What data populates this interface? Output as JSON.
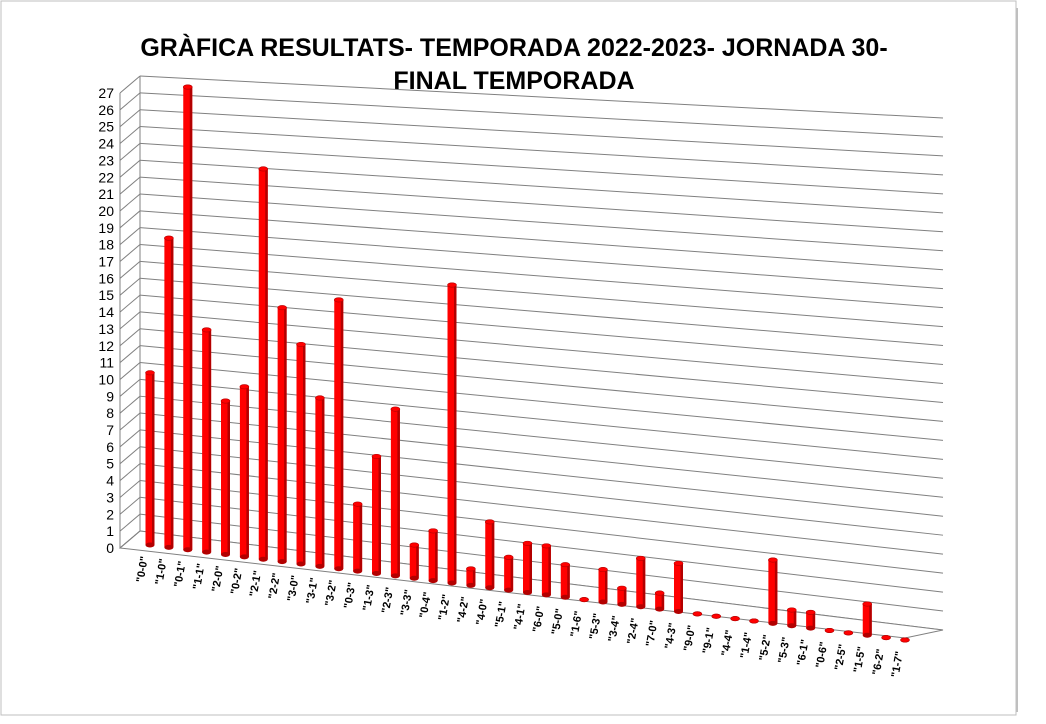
{
  "chart_data": {
    "type": "bar",
    "title_lines": [
      "GRÀFICA RESULTATS- TEMPORADA 2022-2023- JORNADA 30-",
      "FINAL TEMPORADA"
    ],
    "categories": [
      "\"0-0\"",
      "\"1-0\"",
      "\"0-1\"",
      "\"1-1\"",
      "\"2-0\"",
      "\"0-2\"",
      "\"2-1\"",
      "\"2-2\"",
      "\"3-0\"",
      "\"3-1\"",
      "\"3-2\"",
      "\"0-3\"",
      "\"1-3\"",
      "\"2-3\"",
      "\"3-3\"",
      "\"0-4\"",
      "\"1-2\"",
      "\"4-2\"",
      "\"4-0\"",
      "\"5-1\"",
      "\"4-1\"",
      "\"6-0\"",
      "\"5-0\"",
      "\"1-6\"",
      "\"5-3\"",
      "\"3-4\"",
      "\"2-4\"",
      "\"7-0\"",
      "\"4-3\"",
      "\"9-0\"",
      "\"9-1\"",
      "\"4-4\"",
      "\"1-4\"",
      "\"5-2\"",
      "\"5-3\"",
      "\"6-1\"",
      "\"0-6\"",
      "\"2-5\"",
      "\"1-5\"",
      "\"6-2\"",
      "\"1-7\""
    ],
    "values": [
      10,
      18,
      27,
      13,
      9,
      10,
      23,
      15,
      13,
      10,
      16,
      4,
      7,
      10,
      2,
      3,
      18,
      1,
      4,
      2,
      3,
      3,
      2,
      0,
      2,
      1,
      3,
      1,
      3,
      0,
      0,
      0,
      0,
      4,
      1,
      1,
      0,
      0,
      2,
      0,
      0
    ],
    "ylim": [
      0,
      27
    ],
    "yticks": [
      "0",
      "1",
      "2",
      "3",
      "4",
      "5",
      "6",
      "7",
      "8",
      "9",
      "10",
      "11",
      "12",
      "13",
      "14",
      "15",
      "16",
      "17",
      "18",
      "19",
      "20",
      "21",
      "22",
      "23",
      "24",
      "25",
      "26",
      "27"
    ],
    "grid": true,
    "legend": "none",
    "bar_color": "#ff0000",
    "bar_dark_color": "#b30000",
    "grid_color": "#808080"
  }
}
